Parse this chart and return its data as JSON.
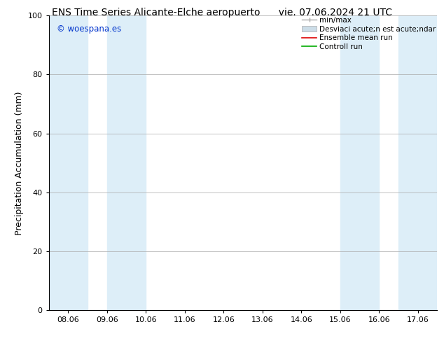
{
  "title_left": "ENS Time Series Alicante-Elche aeropuerto",
  "title_right": "vie. 07.06.2024 21 UTC",
  "ylabel": "Precipitation Accumulation (mm)",
  "ylim": [
    0,
    100
  ],
  "yticks": [
    0,
    20,
    40,
    60,
    80,
    100
  ],
  "x_labels": [
    "08.06",
    "09.06",
    "10.06",
    "11.06",
    "12.06",
    "13.06",
    "14.06",
    "15.06",
    "16.06",
    "17.06"
  ],
  "x_values": [
    0,
    1,
    2,
    3,
    4,
    5,
    6,
    7,
    8,
    9
  ],
  "xlim_min": -0.5,
  "xlim_max": 9.5,
  "watermark": "© woespana.es",
  "watermark_color": "#0033cc",
  "background_color": "#ffffff",
  "plot_bg_color": "#ffffff",
  "shaded_color": "#ddeef8",
  "shaded_bands": [
    {
      "x_start": -0.5,
      "x_end": 0.5
    },
    {
      "x_start": 1.0,
      "x_end": 2.0
    },
    {
      "x_start": 7.0,
      "x_end": 8.0
    },
    {
      "x_start": 8.5,
      "x_end": 9.5
    }
  ],
  "legend_label_minmax": "min/max",
  "legend_label_std": "Desviaci acute;n est acute;ndar",
  "legend_label_ens": "Ensemble mean run",
  "legend_label_ctrl": "Controll run",
  "legend_color_minmax": "#aaaaaa",
  "legend_color_std": "#ccdde8",
  "legend_color_ens": "#dd0000",
  "legend_color_ctrl": "#00aa00",
  "title_fontsize": 10,
  "tick_fontsize": 8,
  "label_fontsize": 9,
  "legend_fontsize": 7.5
}
